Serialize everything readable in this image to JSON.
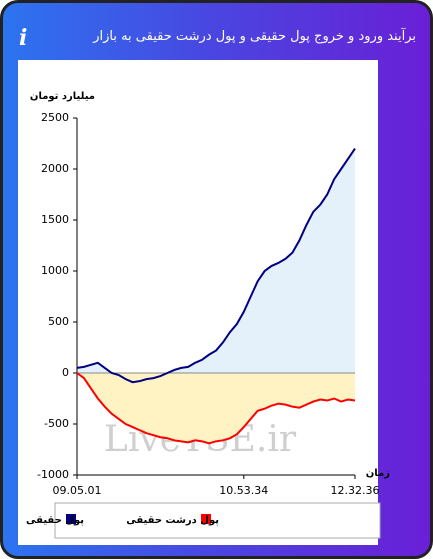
{
  "header": {
    "title": "برآیند ورود و خروج پول حقیقی و پول درشت حقیقی به بازار",
    "info": "i"
  },
  "chart_data": {
    "type": "area-line",
    "y_label": "میلیارد تومان",
    "x_label": "زمان",
    "watermark": "LiveTSE.ir",
    "categories": [
      "09.05.01",
      null,
      null,
      null,
      null,
      null,
      null,
      null,
      null,
      null,
      null,
      null,
      null,
      null,
      null,
      null,
      null,
      null,
      null,
      null,
      null,
      null,
      null,
      null,
      "10.53.34",
      null,
      null,
      null,
      null,
      null,
      null,
      null,
      null,
      null,
      null,
      null,
      null,
      null,
      null,
      null,
      "12.32.36"
    ],
    "series": [
      {
        "name": "پول حقیقی",
        "color": "#000080",
        "area_color": "#e4f0fa",
        "values": [
          50,
          60,
          80,
          100,
          50,
          0,
          -20,
          -60,
          -90,
          -80,
          -60,
          -50,
          -30,
          0,
          30,
          50,
          60,
          100,
          130,
          180,
          220,
          300,
          400,
          480,
          600,
          750,
          900,
          1000,
          1050,
          1080,
          1120,
          1180,
          1300,
          1450,
          1580,
          1650,
          1750,
          1900,
          2000,
          2100,
          2200
        ]
      },
      {
        "name": "پول درشت حقیقی",
        "color": "#ff0000",
        "area_color": "#fff3c4",
        "values": [
          0,
          -50,
          -150,
          -250,
          -330,
          -400,
          -450,
          -500,
          -530,
          -560,
          -590,
          -610,
          -630,
          -640,
          -660,
          -670,
          -680,
          -660,
          -670,
          -690,
          -670,
          -660,
          -640,
          -600,
          -530,
          -450,
          -370,
          -350,
          -320,
          -300,
          -310,
          -330,
          -340,
          -310,
          -280,
          -260,
          -270,
          -250,
          -280,
          -260,
          -270
        ]
      }
    ],
    "ylim": [
      -1000,
      2500
    ],
    "yticks": [
      -1000,
      -500,
      0,
      500,
      1000,
      1500,
      2000,
      2500
    ]
  }
}
